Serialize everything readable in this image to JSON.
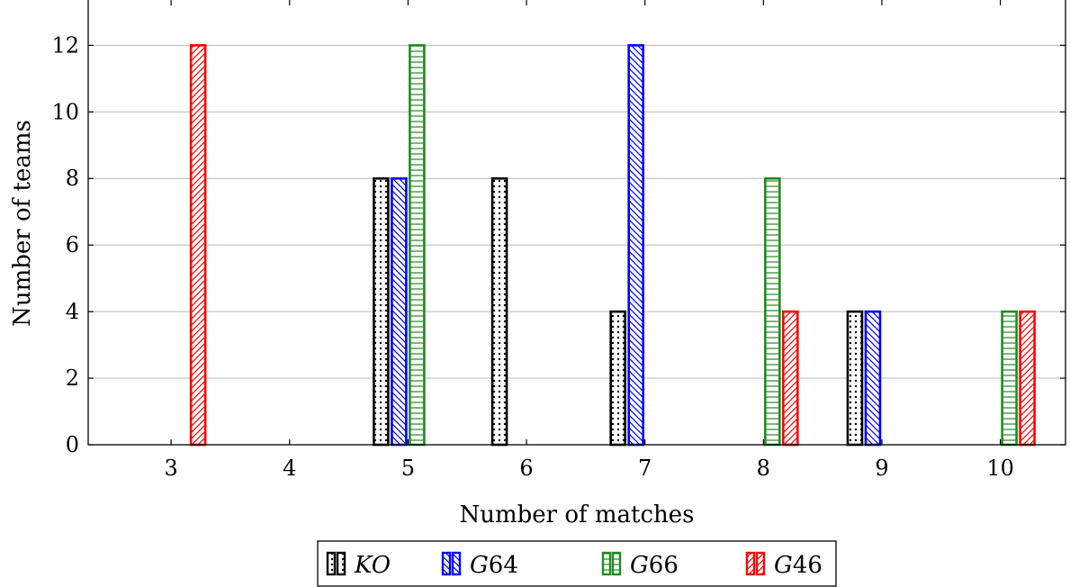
{
  "chart_data": {
    "type": "bar",
    "title": "",
    "xlabel": "Number of matches",
    "ylabel": "Number of teams",
    "x_ticks": [
      3,
      4,
      5,
      6,
      7,
      8,
      9,
      10
    ],
    "y_ticks": [
      0,
      2,
      4,
      6,
      8,
      10,
      12
    ],
    "xlim": [
      2.3,
      10.55
    ],
    "ylim": [
      0,
      13.2
    ],
    "grid": "horizontal",
    "legend_position": "bottom",
    "series": [
      {
        "name": "KO",
        "label_prefix": "",
        "label_italic": "KO",
        "label_suffix": "",
        "color": "#000000",
        "pattern": "dots",
        "points": [
          [
            5,
            8
          ],
          [
            6,
            8
          ],
          [
            7,
            4
          ],
          [
            9,
            4
          ]
        ]
      },
      {
        "name": "G64",
        "label_prefix": "",
        "label_italic": "G",
        "label_suffix": "64",
        "color": "#0000ff",
        "pattern": "north-west-lines",
        "points": [
          [
            5,
            8
          ],
          [
            7,
            12
          ],
          [
            9,
            4
          ]
        ]
      },
      {
        "name": "G66",
        "label_prefix": "",
        "label_italic": "G",
        "label_suffix": "66",
        "color": "#218a21",
        "pattern": "horizontal-lines",
        "points": [
          [
            5,
            12
          ],
          [
            8,
            8
          ],
          [
            10,
            4
          ]
        ]
      },
      {
        "name": "G46",
        "label_prefix": "",
        "label_italic": "G",
        "label_suffix": "46",
        "color": "#ff0000",
        "pattern": "north-east-lines",
        "points": [
          [
            3,
            12
          ],
          [
            8,
            4
          ],
          [
            10,
            4
          ]
        ]
      }
    ]
  }
}
